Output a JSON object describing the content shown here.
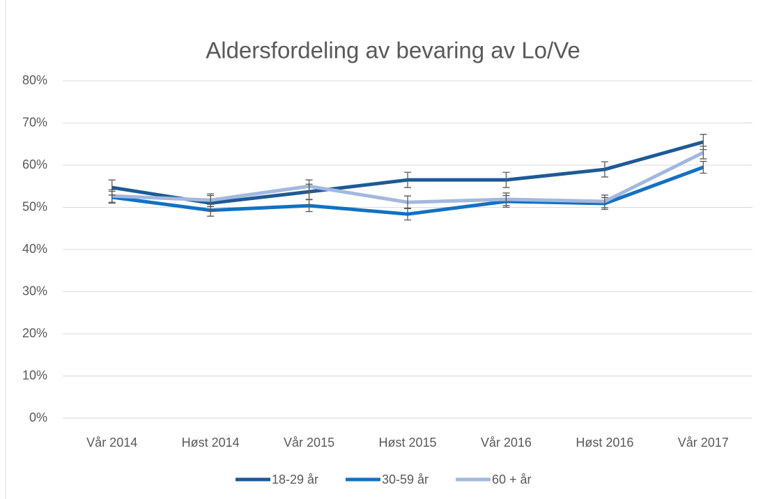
{
  "chart_data": {
    "type": "line",
    "title": "Aldersfordeling av bevaring av Lo/Ve",
    "categories": [
      "Vår 2014",
      "Høst 2014",
      "Vår 2015",
      "Høst 2015",
      "Vår 2016",
      "Høst 2016",
      "Vår 2017"
    ],
    "series": [
      {
        "name": "18-29 år",
        "color": "#1d5a96",
        "values": [
          54.7,
          51,
          53.7,
          56.5,
          56.5,
          59,
          65.5
        ],
        "errors": [
          1.8,
          1.8,
          1.8,
          1.8,
          1.8,
          1.8,
          1.8
        ]
      },
      {
        "name": "30-59 år",
        "color": "#1371c0",
        "values": [
          52.4,
          49.3,
          50.4,
          48.4,
          51.4,
          50.9,
          59.5
        ],
        "errors": [
          1.4,
          1.4,
          1.4,
          1.4,
          1.4,
          1.4,
          1.4
        ]
      },
      {
        "name": "60 + år",
        "color": "#a3b8de",
        "values": [
          52.7,
          51.7,
          55,
          51.2,
          51.9,
          51.4,
          63
        ],
        "errors": [
          1.5,
          1.5,
          1.5,
          1.5,
          1.5,
          1.5,
          1.5
        ]
      }
    ],
    "ylim": [
      0,
      80
    ],
    "yticks": [
      {
        "value": 0,
        "label": "0%"
      },
      {
        "value": 10,
        "label": "10%"
      },
      {
        "value": 20,
        "label": "20%"
      },
      {
        "value": 30,
        "label": "30%"
      },
      {
        "value": 40,
        "label": "40%"
      },
      {
        "value": 50,
        "label": "50%"
      },
      {
        "value": 60,
        "label": "60%"
      },
      {
        "value": 70,
        "label": "70%"
      },
      {
        "value": 80,
        "label": "80%"
      }
    ],
    "grid": true,
    "legend": "bottom"
  }
}
